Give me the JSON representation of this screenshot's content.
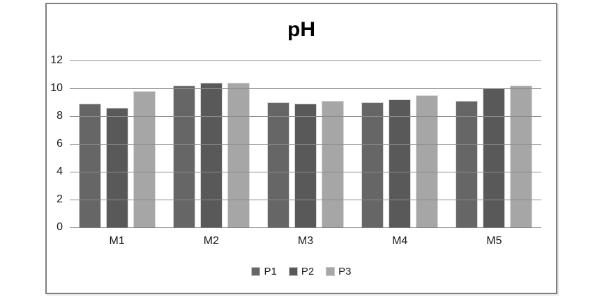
{
  "chart_data": {
    "type": "bar",
    "title": "pH",
    "categories": [
      "M1",
      "M2",
      "M3",
      "M4",
      "M5"
    ],
    "series": [
      {
        "name": "P1",
        "color": "#666666",
        "values": [
          8.9,
          10.2,
          9.0,
          9.0,
          9.1
        ]
      },
      {
        "name": "P2",
        "color": "#595959",
        "values": [
          8.6,
          10.4,
          8.9,
          9.2,
          10.0
        ]
      },
      {
        "name": "P3",
        "color": "#a6a6a6",
        "values": [
          9.8,
          10.4,
          9.1,
          9.5,
          10.2
        ]
      }
    ],
    "xlabel": "",
    "ylabel": "",
    "ylim": [
      0,
      12
    ],
    "yticks": [
      0,
      2,
      4,
      6,
      8,
      10,
      12
    ],
    "grid": true,
    "legend_position": "bottom"
  },
  "colors": {
    "gridline": "#8c8c8c",
    "axis_line": "#7f7f7f",
    "frame_border": "#7f7f7f",
    "bar_outline": "#d9d9d9",
    "title_text": "#000000",
    "tick_text": "#1a1a1a"
  }
}
